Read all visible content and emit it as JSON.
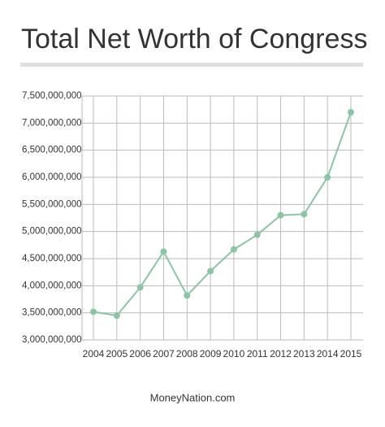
{
  "chart_data": {
    "type": "line",
    "title": "Total Net Worth of Congress",
    "footer": "MoneyNation.com",
    "categories": [
      "2004",
      "2005",
      "2006",
      "2007",
      "2008",
      "2009",
      "2010",
      "2011",
      "2012",
      "2013",
      "2014",
      "2015"
    ],
    "values": [
      3520000000,
      3450000000,
      3970000000,
      4630000000,
      3820000000,
      4270000000,
      4670000000,
      4940000000,
      5300000000,
      5320000000,
      6000000000,
      7200000000
    ],
    "color": "#8cc4a6",
    "ylim": [
      3000000000,
      7500000000
    ],
    "yticks": [
      {
        "value": 3000000000,
        "label": "3,000,000,000"
      },
      {
        "value": 3500000000,
        "label": "3,500,000,000"
      },
      {
        "value": 4000000000,
        "label": "4,000,000,000"
      },
      {
        "value": 4500000000,
        "label": "4,500,000,000"
      },
      {
        "value": 5000000000,
        "label": "5,000,000,000"
      },
      {
        "value": 5500000000,
        "label": "5,500,000,000"
      },
      {
        "value": 6000000000,
        "label": "6,000,000,000"
      },
      {
        "value": 6500000000,
        "label": "6,500,000,000"
      },
      {
        "value": 7000000000,
        "label": "7,000,000,000"
      },
      {
        "value": 7500000000,
        "label": "7,500,000,000"
      }
    ],
    "grid": true
  }
}
